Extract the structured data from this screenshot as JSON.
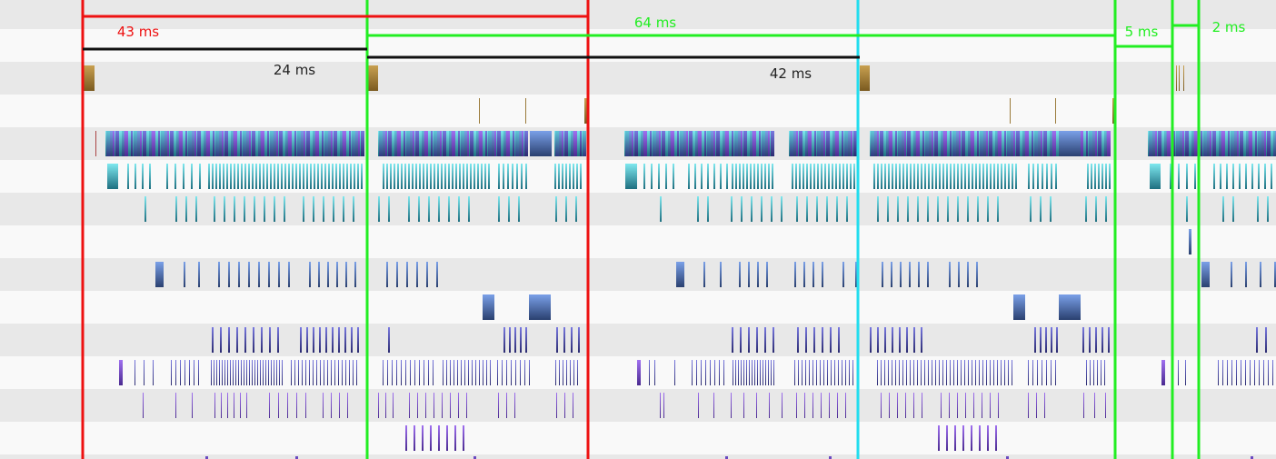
{
  "window": {
    "title": ""
  },
  "colors": {
    "row_even": "#e8e8e8",
    "row_odd": "#f9f9f9",
    "marker_red": "#ee1111",
    "marker_green": "#22ee22",
    "marker_cyan": "#22ddee",
    "measure_black": "#111111",
    "gold": "#b08a3a",
    "teal": "#2aa8b8",
    "blue": "#4a70b8",
    "indigo": "#4a4aa8",
    "violet": "#6a4ac0"
  },
  "measurements": [
    {
      "id": "red-span",
      "label": "43 ms",
      "color": "red"
    },
    {
      "id": "black-span-1",
      "label": "24 ms",
      "color": "black"
    },
    {
      "id": "green-span-1",
      "label": "64 ms",
      "color": "green"
    },
    {
      "id": "black-span-2",
      "label": "42 ms",
      "color": "black"
    },
    {
      "id": "green-span-2",
      "label": "5 ms",
      "color": "green"
    },
    {
      "id": "green-span-3",
      "label": "2 ms",
      "color": "green"
    }
  ],
  "tracks": [
    {
      "name": "track-1"
    },
    {
      "name": "track-2"
    },
    {
      "name": "track-3"
    },
    {
      "name": "track-4"
    },
    {
      "name": "track-5"
    },
    {
      "name": "track-6"
    },
    {
      "name": "track-7"
    },
    {
      "name": "track-8"
    },
    {
      "name": "track-9"
    },
    {
      "name": "track-10"
    },
    {
      "name": "track-11"
    },
    {
      "name": "track-12"
    },
    {
      "name": "track-13"
    },
    {
      "name": "track-14"
    }
  ]
}
